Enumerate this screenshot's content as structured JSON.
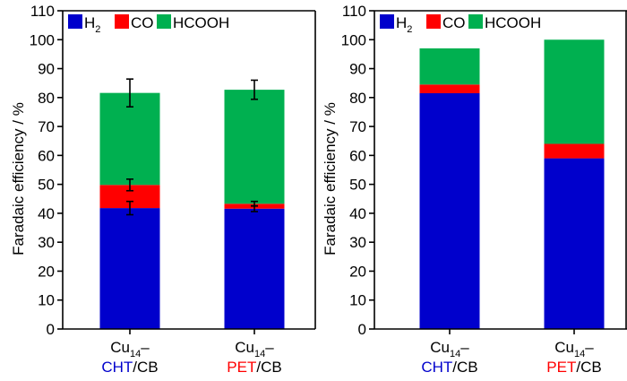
{
  "colors": {
    "h2": "#0000cc",
    "co": "#ff0000",
    "hcooh": "#00b050",
    "cht": "#0000cc",
    "pet": "#ff0000",
    "axis": "#000000"
  },
  "chart_data": [
    {
      "type": "bar",
      "stacked": true,
      "ylabel": "Faradaic efficiency / %",
      "ylim": [
        0,
        110
      ],
      "yticks": [
        0,
        10,
        20,
        30,
        40,
        50,
        60,
        70,
        80,
        90,
        100,
        110
      ],
      "legend": {
        "position": "top-left",
        "entries": [
          "H2",
          "CO",
          "HCOOH"
        ]
      },
      "categories": [
        {
          "prefix": "Cu",
          "subscript": "14",
          "dash": "–",
          "ligand": "CHT",
          "suffix": "/CB",
          "ligand_color": "#0000cc"
        },
        {
          "prefix": "Cu",
          "subscript": "14",
          "dash": "–",
          "ligand": "PET",
          "suffix": "/CB",
          "ligand_color": "#ff0000"
        }
      ],
      "series": [
        {
          "name": "H2",
          "color": "#0000cc",
          "values": [
            41.8,
            41.6
          ],
          "errors": [
            2.3,
            1.0
          ]
        },
        {
          "name": "CO",
          "color": "#ff0000",
          "values": [
            8.0,
            1.7
          ],
          "errors": [
            2.0,
            0.8
          ]
        },
        {
          "name": "HCOOH",
          "color": "#00b050",
          "values": [
            31.8,
            39.4
          ],
          "errors": [
            4.8,
            3.3
          ]
        }
      ]
    },
    {
      "type": "bar",
      "stacked": true,
      "ylabel": "Faradaic efficiency / %",
      "ylim": [
        0,
        110
      ],
      "yticks": [
        0,
        10,
        20,
        30,
        40,
        50,
        60,
        70,
        80,
        90,
        100,
        110
      ],
      "legend": {
        "position": "top-left",
        "entries": [
          "H2",
          "CO",
          "HCOOH"
        ]
      },
      "categories": [
        {
          "prefix": "Cu",
          "subscript": "14",
          "dash": "–",
          "ligand": "CHT",
          "suffix": "/CB",
          "ligand_color": "#0000cc"
        },
        {
          "prefix": "Cu",
          "subscript": "14",
          "dash": "–",
          "ligand": "PET",
          "suffix": "/CB",
          "ligand_color": "#ff0000"
        }
      ],
      "series": [
        {
          "name": "H2",
          "color": "#0000cc",
          "values": [
            81.5,
            59.0
          ]
        },
        {
          "name": "CO",
          "color": "#ff0000",
          "values": [
            3.0,
            5.0
          ]
        },
        {
          "name": "HCOOH",
          "color": "#00b050",
          "values": [
            12.5,
            36.0
          ]
        }
      ]
    }
  ]
}
